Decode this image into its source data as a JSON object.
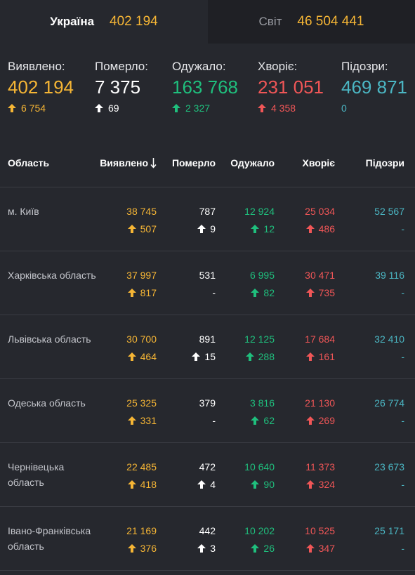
{
  "tabs": {
    "ukraine": {
      "name": "Україна",
      "value": "402 194"
    },
    "world": {
      "name": "Світ",
      "value": "46 504 441"
    }
  },
  "summary": {
    "detected": {
      "label": "Виявлено:",
      "value": "402 194",
      "delta": "6 754"
    },
    "died": {
      "label": "Померло:",
      "value": "7 375",
      "delta": "69"
    },
    "recovered": {
      "label": "Одужало:",
      "value": "163 768",
      "delta": "2 327"
    },
    "sick": {
      "label": "Хворіє:",
      "value": "231 051",
      "delta": "4 358"
    },
    "suspected": {
      "label": "Підозри:",
      "value": "469 871",
      "delta": "0"
    }
  },
  "table": {
    "headers": {
      "region": "Область",
      "detected": "Виявлено",
      "died": "Померло",
      "recovered": "Одужало",
      "sick": "Хворіє",
      "suspected": "Підозри"
    },
    "rows": [
      {
        "region": "м. Київ",
        "detected": "38 745",
        "detected_d": "507",
        "died": "787",
        "died_d": "9",
        "recovered": "12 924",
        "recovered_d": "12",
        "sick": "25 034",
        "sick_d": "486",
        "suspected": "52 567",
        "suspected_d": "-"
      },
      {
        "region": "Харківська область",
        "detected": "37 997",
        "detected_d": "817",
        "died": "531",
        "died_d": "-",
        "recovered": "6 995",
        "recovered_d": "82",
        "sick": "30 471",
        "sick_d": "735",
        "suspected": "39 116",
        "suspected_d": "-"
      },
      {
        "region": "Львівська область",
        "detected": "30 700",
        "detected_d": "464",
        "died": "891",
        "died_d": "15",
        "recovered": "12 125",
        "recovered_d": "288",
        "sick": "17 684",
        "sick_d": "161",
        "suspected": "32 410",
        "suspected_d": "-"
      },
      {
        "region": "Одеська область",
        "detected": "25 325",
        "detected_d": "331",
        "died": "379",
        "died_d": "-",
        "recovered": "3 816",
        "recovered_d": "62",
        "sick": "21 130",
        "sick_d": "269",
        "suspected": "26 774",
        "suspected_d": "-"
      },
      {
        "region": "Чернівецька область",
        "detected": "22 485",
        "detected_d": "418",
        "died": "472",
        "died_d": "4",
        "recovered": "10 640",
        "recovered_d": "90",
        "sick": "11 373",
        "sick_d": "324",
        "suspected": "23 673",
        "suspected_d": "-"
      },
      {
        "region": "Івано-Франківська область",
        "detected": "21 169",
        "detected_d": "376",
        "died": "442",
        "died_d": "3",
        "recovered": "10 202",
        "recovered_d": "26",
        "sick": "10 525",
        "sick_d": "347",
        "suspected": "25 171",
        "suspected_d": "-"
      }
    ]
  },
  "colors": {
    "background": "#26282e",
    "detected": "#f5b535",
    "died": "#ffffff",
    "recovered": "#1fbf7d",
    "sick": "#f05657",
    "suspected": "#4bb6c3"
  },
  "icons": {
    "delta": "arrow-up-icon",
    "sort": "arrow-down-sort-icon"
  }
}
